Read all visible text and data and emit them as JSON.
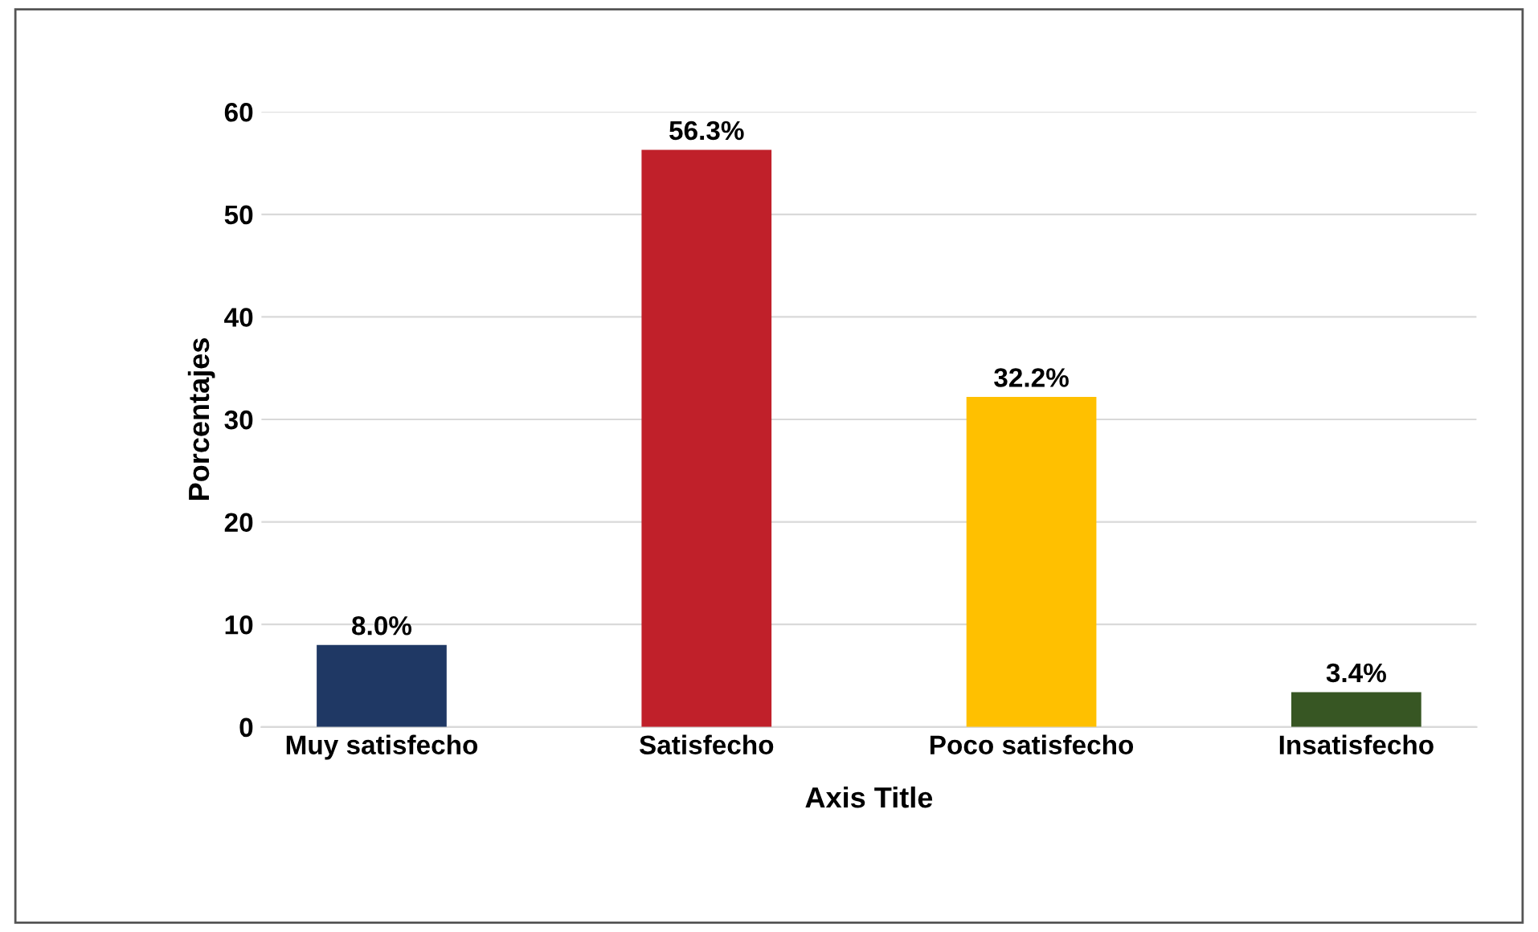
{
  "chart_data": {
    "type": "bar",
    "xlabel": "Axis Title",
    "ylabel": "Porcentajes",
    "categories": [
      "Muy satisfecho",
      "Satisfecho",
      "Poco satisfecho",
      "Insatisfecho"
    ],
    "values": [
      8.0,
      56.3,
      32.2,
      3.4
    ],
    "colors": [
      "#1f3864",
      "#c0202a",
      "#ffc000",
      "#375623"
    ],
    "value_labels": [
      "8.0%",
      "56.3%",
      "32.2%",
      "3.4%"
    ],
    "ylim": [
      0,
      60
    ],
    "yticks": [
      0,
      10,
      20,
      30,
      40,
      50,
      60
    ],
    "grid": "y",
    "legend": false
  }
}
